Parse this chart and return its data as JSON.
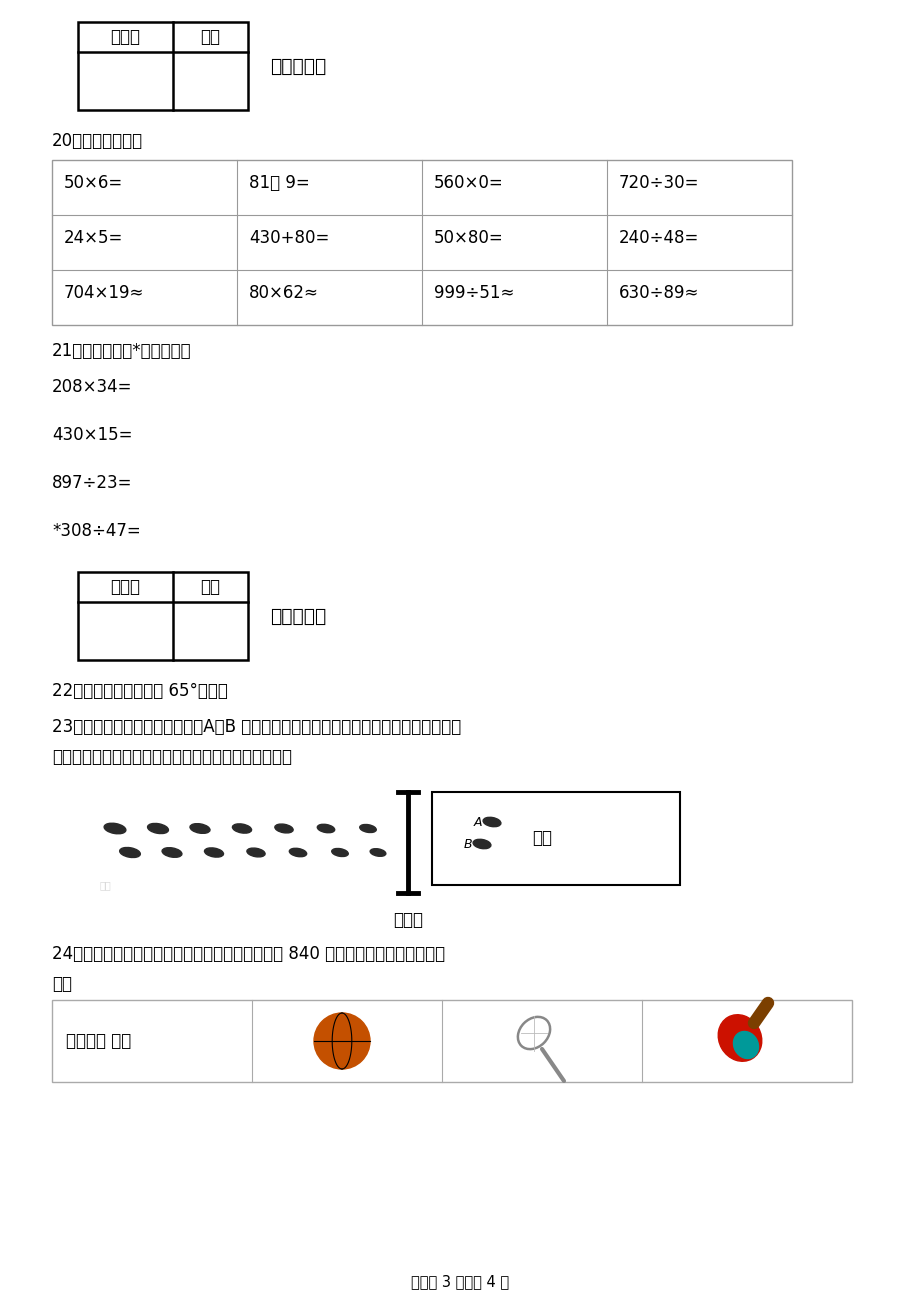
{
  "bg_color": "#ffffff",
  "title_section4": "四、计算题",
  "title_section5": "五、解答题",
  "grader_box_label1": "评卷人",
  "grader_box_label2": "得分",
  "q20_label": "20．口算与估算．",
  "q21_label": "21．笔算．（带*的要验算）",
  "q22_label": "22．用量角器画出一个 65°的角．",
  "q23_line1": "23．是明明逃远时留下的脚印，A，B 是他两个脚后跟落入沙坑的点，如果你是裁判员，",
  "q23_line2": "你该怎样测量他的成绩？请在图中画出待测量的线段．",
  "q24_line1": "24．学校张老师到体育商场购买体育器材，共带了 840 元钱．下面是部分商品的价",
  "q24_line2": "格．",
  "calc_table": [
    [
      "50×6=",
      "81－ 9=",
      "560×0=",
      "720÷30="
    ],
    [
      "24×5=",
      "430+80=",
      "50×80=",
      "240÷48="
    ],
    [
      "704×19≈",
      "80×62≈",
      "999÷51≈",
      "630÷89≈"
    ]
  ],
  "written_calc": [
    "208×34=",
    "430×15=",
    "897÷23=",
    "*308÷47="
  ],
  "sports_table_header": "体育用品 种类",
  "footer": "试卷第 3 页，总 4 页",
  "qi_tiao_xian": "起跳线",
  "sha_keng": "沙坑",
  "point_a": "A",
  "point_b": "B"
}
